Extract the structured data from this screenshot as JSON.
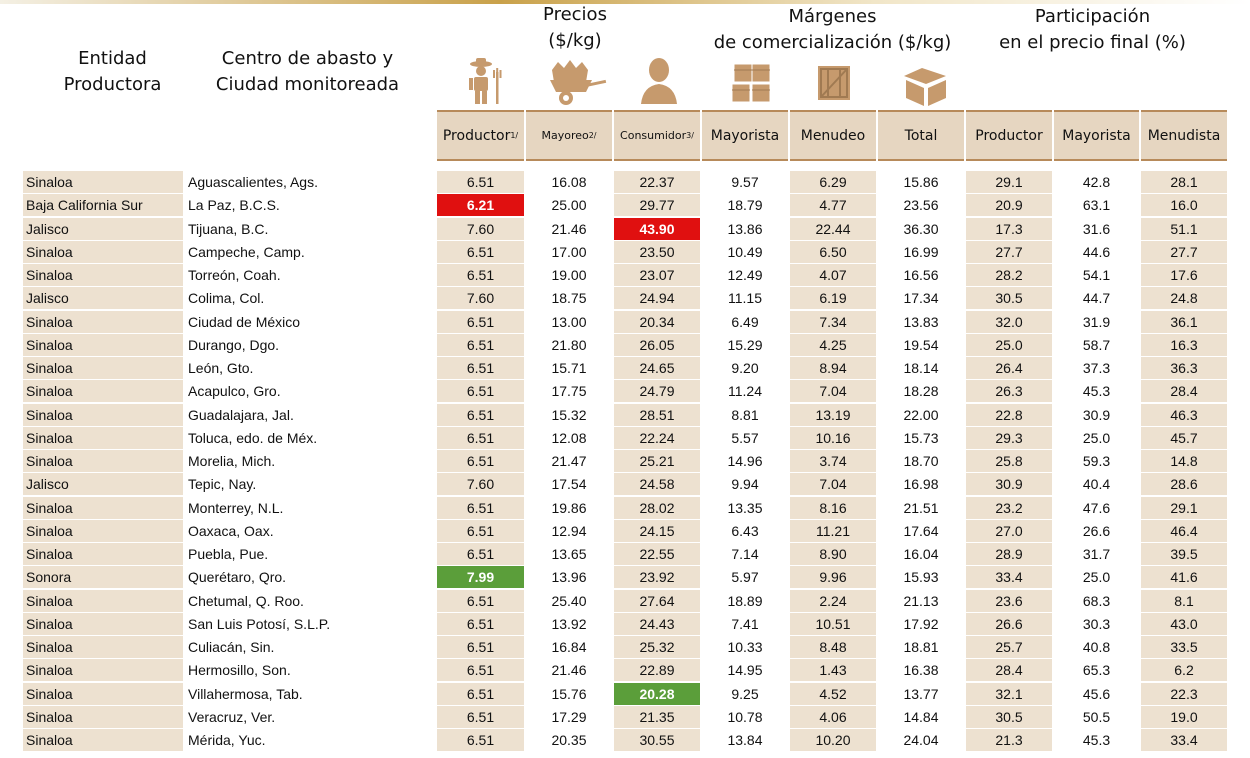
{
  "header": {
    "entidad": [
      "Entidad",
      "Productora"
    ],
    "centro": [
      "Centro de abasto y",
      "Ciudad monitoreada"
    ],
    "precios": [
      "Precios",
      "($/kg)"
    ],
    "margenes": [
      "Márgenes",
      "de comercialización ($/kg)"
    ],
    "participacion": [
      "Participación",
      "en el precio final (%)"
    ]
  },
  "icons": [
    "farmer-icon",
    "wheelbarrow-icon",
    "consumer-icon",
    "stacked-crates-icon",
    "crate-icon",
    "open-box-icon"
  ],
  "columns": {
    "productor": "Productor",
    "productor_sup": "1/",
    "mayoreo": "Mayoreo",
    "mayoreo_sup": "2/",
    "consumidor": "Consumidor",
    "consumidor_sup": "3/",
    "mayorista": "Mayorista",
    "menudeo": "Menudeo",
    "total": "Total",
    "part_productor": "Productor",
    "part_mayorista": "Mayorista",
    "part_menudista": "Menudista"
  },
  "colors": {
    "tan": "#ede1d0",
    "red": "#e01010",
    "green": "#5b9e3a"
  },
  "rows": [
    {
      "ent": "Sinaloa",
      "city": "Aguascalientes, Ags.",
      "v": [
        "6.51",
        "16.08",
        "22.37",
        "9.57",
        "6.29",
        "15.86",
        "29.1",
        "42.8",
        "28.1"
      ]
    },
    {
      "ent": "Baja California Sur",
      "city": "La Paz, B.C.S.",
      "v": [
        "6.21",
        "25.00",
        "29.77",
        "18.79",
        "4.77",
        "23.56",
        "20.9",
        "63.1",
        "16.0"
      ],
      "hl": {
        "0": "red"
      }
    },
    {
      "ent": "Jalisco",
      "city": "Tijuana, B.C.",
      "v": [
        "7.60",
        "21.46",
        "43.90",
        "13.86",
        "22.44",
        "36.30",
        "17.3",
        "31.6",
        "51.1"
      ],
      "hl": {
        "2": "red"
      }
    },
    {
      "ent": "Sinaloa",
      "city": "Campeche, Camp.",
      "v": [
        "6.51",
        "17.00",
        "23.50",
        "10.49",
        "6.50",
        "16.99",
        "27.7",
        "44.6",
        "27.7"
      ]
    },
    {
      "ent": "Sinaloa",
      "city": "Torreón, Coah.",
      "v": [
        "6.51",
        "19.00",
        "23.07",
        "12.49",
        "4.07",
        "16.56",
        "28.2",
        "54.1",
        "17.6"
      ]
    },
    {
      "ent": "Jalisco",
      "city": "Colima, Col.",
      "v": [
        "7.60",
        "18.75",
        "24.94",
        "11.15",
        "6.19",
        "17.34",
        "30.5",
        "44.7",
        "24.8"
      ]
    },
    {
      "ent": "Sinaloa",
      "city": "Ciudad de México",
      "v": [
        "6.51",
        "13.00",
        "20.34",
        "6.49",
        "7.34",
        "13.83",
        "32.0",
        "31.9",
        "36.1"
      ]
    },
    {
      "ent": "Sinaloa",
      "city": "Durango, Dgo.",
      "v": [
        "6.51",
        "21.80",
        "26.05",
        "15.29",
        "4.25",
        "19.54",
        "25.0",
        "58.7",
        "16.3"
      ]
    },
    {
      "ent": "Sinaloa",
      "city": "León, Gto.",
      "v": [
        "6.51",
        "15.71",
        "24.65",
        "9.20",
        "8.94",
        "18.14",
        "26.4",
        "37.3",
        "36.3"
      ]
    },
    {
      "ent": "Sinaloa",
      "city": "Acapulco, Gro.",
      "v": [
        "6.51",
        "17.75",
        "24.79",
        "11.24",
        "7.04",
        "18.28",
        "26.3",
        "45.3",
        "28.4"
      ]
    },
    {
      "ent": "Sinaloa",
      "city": "Guadalajara, Jal.",
      "v": [
        "6.51",
        "15.32",
        "28.51",
        "8.81",
        "13.19",
        "22.00",
        "22.8",
        "30.9",
        "46.3"
      ]
    },
    {
      "ent": "Sinaloa",
      "city": "Toluca, edo. de Méx.",
      "v": [
        "6.51",
        "12.08",
        "22.24",
        "5.57",
        "10.16",
        "15.73",
        "29.3",
        "25.0",
        "45.7"
      ]
    },
    {
      "ent": "Sinaloa",
      "city": "Morelia, Mich.",
      "v": [
        "6.51",
        "21.47",
        "25.21",
        "14.96",
        "3.74",
        "18.70",
        "25.8",
        "59.3",
        "14.8"
      ]
    },
    {
      "ent": "Jalisco",
      "city": "Tepic, Nay.",
      "v": [
        "7.60",
        "17.54",
        "24.58",
        "9.94",
        "7.04",
        "16.98",
        "30.9",
        "40.4",
        "28.6"
      ]
    },
    {
      "ent": "Sinaloa",
      "city": "Monterrey, N.L.",
      "v": [
        "6.51",
        "19.86",
        "28.02",
        "13.35",
        "8.16",
        "21.51",
        "23.2",
        "47.6",
        "29.1"
      ]
    },
    {
      "ent": "Sinaloa",
      "city": "Oaxaca, Oax.",
      "v": [
        "6.51",
        "12.94",
        "24.15",
        "6.43",
        "11.21",
        "17.64",
        "27.0",
        "26.6",
        "46.4"
      ]
    },
    {
      "ent": "Sinaloa",
      "city": "Puebla, Pue.",
      "v": [
        "6.51",
        "13.65",
        "22.55",
        "7.14",
        "8.90",
        "16.04",
        "28.9",
        "31.7",
        "39.5"
      ]
    },
    {
      "ent": "Sonora",
      "city": "Querétaro, Qro.",
      "v": [
        "7.99",
        "13.96",
        "23.92",
        "5.97",
        "9.96",
        "15.93",
        "33.4",
        "25.0",
        "41.6"
      ],
      "hl": {
        "0": "green"
      }
    },
    {
      "ent": "Sinaloa",
      "city": "Chetumal, Q. Roo.",
      "v": [
        "6.51",
        "25.40",
        "27.64",
        "18.89",
        "2.24",
        "21.13",
        "23.6",
        "68.3",
        "8.1"
      ]
    },
    {
      "ent": "Sinaloa",
      "city": "San Luis Potosí, S.L.P.",
      "v": [
        "6.51",
        "13.92",
        "24.43",
        "7.41",
        "10.51",
        "17.92",
        "26.6",
        "30.3",
        "43.0"
      ]
    },
    {
      "ent": "Sinaloa",
      "city": "Culiacán, Sin.",
      "v": [
        "6.51",
        "16.84",
        "25.32",
        "10.33",
        "8.48",
        "18.81",
        "25.7",
        "40.8",
        "33.5"
      ]
    },
    {
      "ent": "Sinaloa",
      "city": "Hermosillo, Son.",
      "v": [
        "6.51",
        "21.46",
        "22.89",
        "14.95",
        "1.43",
        "16.38",
        "28.4",
        "65.3",
        "6.2"
      ]
    },
    {
      "ent": "Sinaloa",
      "city": "Villahermosa, Tab.",
      "v": [
        "6.51",
        "15.76",
        "20.28",
        "9.25",
        "4.52",
        "13.77",
        "32.1",
        "45.6",
        "22.3"
      ],
      "hl": {
        "2": "green"
      }
    },
    {
      "ent": "Sinaloa",
      "city": "Veracruz, Ver.",
      "v": [
        "6.51",
        "17.29",
        "21.35",
        "10.78",
        "4.06",
        "14.84",
        "30.5",
        "50.5",
        "19.0"
      ]
    },
    {
      "ent": "Sinaloa",
      "city": "Mérida, Yuc.",
      "v": [
        "6.51",
        "20.35",
        "30.55",
        "13.84",
        "10.20",
        "24.04",
        "21.3",
        "45.3",
        "33.4"
      ]
    }
  ]
}
